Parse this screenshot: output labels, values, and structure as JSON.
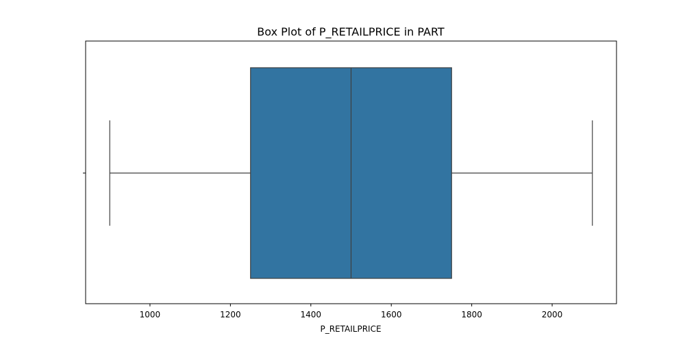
{
  "chart_data": {
    "type": "box",
    "title": "Box Plot of P_RETAILPRICE in PART",
    "xlabel": "P_RETAILPRICE",
    "ylabel": "",
    "orientation": "horizontal",
    "xlim": [
      840,
      2160
    ],
    "x_ticks": [
      1000,
      1200,
      1400,
      1600,
      1800,
      2000
    ],
    "x_tick_labels": [
      "1000",
      "1200",
      "1400",
      "1600",
      "1800",
      "2000"
    ],
    "grid": false,
    "legend": "none",
    "colors": {
      "box_fill": "#3274a1",
      "line": "#3f3f3f"
    },
    "series": [
      {
        "whisker_low": 900,
        "q1": 1250,
        "median": 1500,
        "q3": 1750,
        "whisker_high": 2100
      }
    ]
  }
}
